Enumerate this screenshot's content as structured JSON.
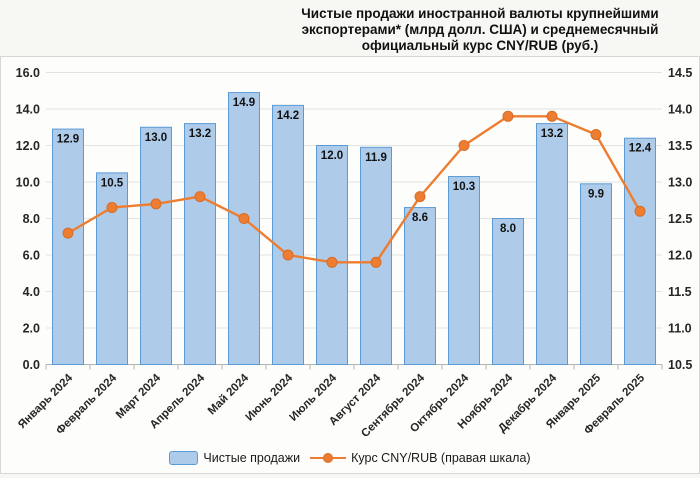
{
  "title": {
    "lines": [
      "Чистые продажи иностранной валюты крупнейшими",
      "экспортерами* (млрд долл. США) и среднемесячный",
      "официальный курс CNY/RUB (руб.)"
    ]
  },
  "legend": {
    "bar_label": "Чистые продажи",
    "line_label": "Курс CNY/RUB (правая шкала)"
  },
  "colors": {
    "bar_fill": "#aecbea",
    "bar_border": "#5b9bd5",
    "line": "#ed7d31",
    "marker_border": "#d86d27",
    "grid": "#e4e4e1",
    "axis": "#b3b3b3",
    "text": "#262626"
  },
  "chart_data": {
    "type": "bar",
    "subtype": "bar-with-line-overlay",
    "title": "Чистые продажи иностранной валюты крупнейшими экспортерами* (млрд долл. США) и среднемесячный официальный курс CNY/RUB (руб.)",
    "categories": [
      "Январь 2024",
      "Февраль 2024",
      "Март 2024",
      "Апрель 2024",
      "Май 2024",
      "Июнь 2024",
      "Июль 2024",
      "Август 2024",
      "Сентябрь 2024",
      "Октябрь 2024",
      "Ноябрь 2024",
      "Декабрь 2024",
      "Январь 2025",
      "Февраль 2025"
    ],
    "series": [
      {
        "name": "Чистые продажи",
        "type": "bar",
        "axis": "left",
        "values": [
          12.9,
          10.5,
          13.0,
          13.2,
          14.9,
          14.2,
          12.0,
          11.9,
          8.6,
          10.3,
          8.0,
          13.2,
          9.9,
          12.4
        ],
        "data_labels": true
      },
      {
        "name": "Курс CNY/RUB (правая шкала)",
        "type": "line",
        "axis": "right",
        "values": [
          12.3,
          12.65,
          12.7,
          12.8,
          12.5,
          12.0,
          11.9,
          11.9,
          12.8,
          13.5,
          13.9,
          13.9,
          13.65,
          12.6
        ],
        "data_labels": false
      }
    ],
    "left_axis": {
      "min": 0,
      "max": 16,
      "step": 2,
      "tick_labels": [
        "0.0",
        "2.0",
        "4.0",
        "6.0",
        "8.0",
        "10.0",
        "12.0",
        "14.0",
        "16.0"
      ]
    },
    "right_axis": {
      "min": 10.5,
      "max": 14.5,
      "step": 0.5,
      "tick_labels": [
        "10.5",
        "11.0",
        "11.5",
        "12.0",
        "12.5",
        "13.0",
        "13.5",
        "14.0",
        "14.5"
      ]
    },
    "grid": true,
    "legend_position": "bottom",
    "x_label_rotation_deg": -45
  }
}
